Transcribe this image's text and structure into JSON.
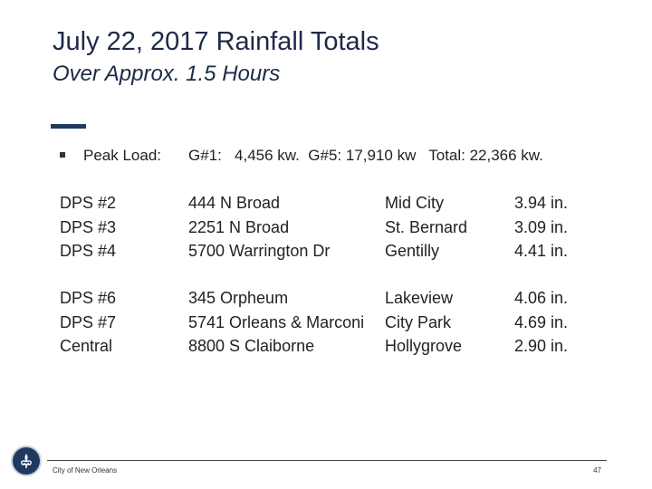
{
  "slide": {
    "title": "July 22, 2017 Rainfall Totals",
    "subtitle": "Over Approx. 1.5 Hours",
    "peak": {
      "label": "Peak Load:",
      "value": "G#1:   4,456 kw.  G#5: 17,910 kw   Total: 22,366 kw."
    },
    "groups": [
      {
        "stations": [
          "DPS #2",
          "DPS #3",
          "DPS #4"
        ],
        "addresses": [
          "444 N Broad",
          "2251 N Broad",
          "5700 Warrington Dr"
        ],
        "areas": [
          "Mid City",
          "St. Bernard",
          "Gentilly"
        ],
        "totals": [
          "3.94 in.",
          "3.09 in.",
          "4.41 in."
        ]
      },
      {
        "stations": [
          "DPS #6",
          "DPS #7",
          "Central"
        ],
        "addresses": [
          "345 Orpheum",
          "5741 Orleans & Marconi",
          "8800 S Claiborne"
        ],
        "areas": [
          "Lakeview",
          "City Park",
          "Hollygrove"
        ],
        "totals": [
          "4.06 in.",
          "4.69 in.",
          "2.90 in."
        ]
      }
    ]
  },
  "footer": {
    "org": "City of New Orleans",
    "page_number": "47",
    "logo_icon": "city-seal-icon"
  },
  "colors": {
    "title": "#1c2a48",
    "accent": "#1f3a60"
  }
}
